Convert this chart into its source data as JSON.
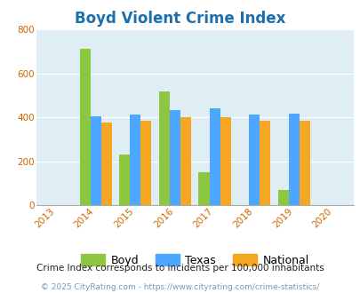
{
  "title": "Boyd Violent Crime Index",
  "years": [
    2013,
    2014,
    2015,
    2016,
    2017,
    2018,
    2019,
    2020
  ],
  "bar_years": [
    2014,
    2015,
    2016,
    2017,
    2018,
    2019
  ],
  "boyd": [
    710,
    232,
    519,
    148,
    0,
    68
  ],
  "texas": [
    405,
    412,
    432,
    440,
    412,
    417
  ],
  "national": [
    375,
    383,
    398,
    398,
    382,
    383
  ],
  "boyd_color": "#8dc63f",
  "texas_color": "#4da6ff",
  "national_color": "#f5a623",
  "bg_color": "#deeef4",
  "title_color": "#1a6faf",
  "xlim": [
    2012.5,
    2020.5
  ],
  "ylim": [
    0,
    800
  ],
  "yticks": [
    0,
    200,
    400,
    600,
    800
  ],
  "bar_width": 0.27,
  "footnote1": "Crime Index corresponds to incidents per 100,000 inhabitants",
  "footnote2": "© 2025 CityRating.com - https://www.cityrating.com/crime-statistics/",
  "figsize": [
    4.06,
    3.3
  ],
  "dpi": 100
}
